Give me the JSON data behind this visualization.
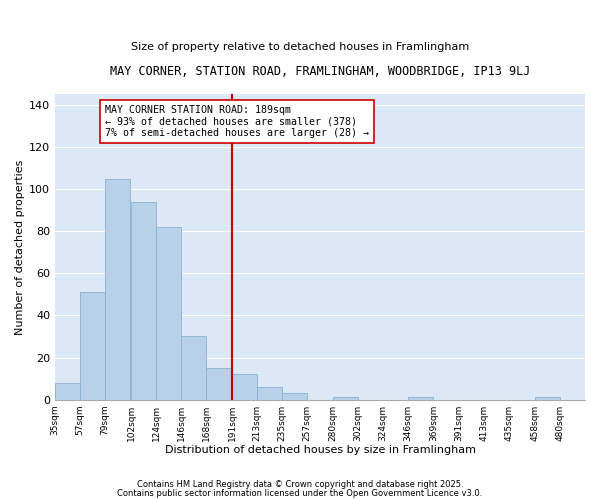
{
  "title": "MAY CORNER, STATION ROAD, FRAMLINGHAM, WOODBRIDGE, IP13 9LJ",
  "subtitle": "Size of property relative to detached houses in Framlingham",
  "xlabel": "Distribution of detached houses by size in Framlingham",
  "ylabel": "Number of detached properties",
  "bar_color": "#b8d0e8",
  "bar_edge_color": "#8ab0d0",
  "figure_bg": "#ffffff",
  "axes_bg": "#dce8f5",
  "grid_color": "#ffffff",
  "vline_color": "#cc0000",
  "annotation_text": "MAY CORNER STATION ROAD: 189sqm\n← 93% of detached houses are smaller (378)\n7% of semi-detached houses are larger (28) →",
  "annotation_box_facecolor": "#ffffff",
  "annotation_box_edge": "#cc0000",
  "bins_left": [
    35,
    57,
    79,
    102,
    124,
    146,
    168,
    191,
    213,
    235,
    257,
    280,
    302,
    324,
    346,
    369,
    391,
    413,
    435,
    458
  ],
  "bin_width": 22,
  "bin_heights": [
    8,
    51,
    105,
    94,
    82,
    30,
    15,
    12,
    6,
    3,
    0,
    1,
    0,
    0,
    1,
    0,
    0,
    0,
    0,
    1
  ],
  "xtick_labels": [
    "35sqm",
    "57sqm",
    "79sqm",
    "102sqm",
    "124sqm",
    "146sqm",
    "168sqm",
    "191sqm",
    "213sqm",
    "235sqm",
    "257sqm",
    "280sqm",
    "302sqm",
    "324sqm",
    "346sqm",
    "369sqm",
    "391sqm",
    "413sqm",
    "435sqm",
    "458sqm",
    "480sqm"
  ],
  "ylim": [
    0,
    145
  ],
  "yticks": [
    0,
    20,
    40,
    60,
    80,
    100,
    120,
    140
  ],
  "footer_line1": "Contains HM Land Registry data © Crown copyright and database right 2025.",
  "footer_line2": "Contains public sector information licensed under the Open Government Licence v3.0."
}
